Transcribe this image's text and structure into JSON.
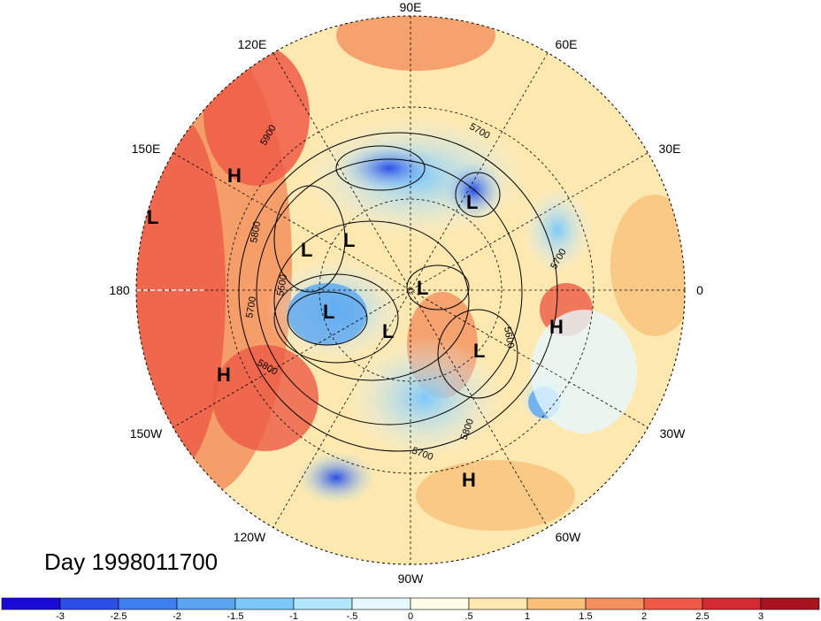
{
  "title": "Day 1998011700",
  "longitude_labels": {
    "top": "90E",
    "upper_left": "120E",
    "upper_right": "60E",
    "mid_upper_left": "150E",
    "mid_upper_right": "30E",
    "left": "180",
    "right": "0",
    "mid_lower_left": "150W",
    "mid_lower_right": "30W",
    "lower_left": "120W",
    "lower_right": "60W",
    "bottom": "90W"
  },
  "pressure_centers": [
    {
      "type": "H"
    },
    {
      "type": "L"
    },
    {
      "type": "L"
    },
    {
      "type": "L"
    },
    {
      "type": "L"
    },
    {
      "type": "L"
    },
    {
      "type": "L"
    },
    {
      "type": "H"
    },
    {
      "type": "L"
    },
    {
      "type": "L"
    },
    {
      "type": "H"
    },
    {
      "type": "H"
    }
  ],
  "contour_labels": [
    "5900",
    "5800",
    "5500",
    "5700",
    "5800",
    "5700",
    "5700",
    "5600",
    "5800",
    "5700"
  ],
  "colorbar": {
    "ticks": [
      "-3",
      "-2.5",
      "-2",
      "-1.5",
      "-1",
      "-.5",
      "0",
      ".5",
      "1",
      "1.5",
      "2",
      "2.5",
      "3"
    ],
    "colors": [
      "#1a0ad6",
      "#2a4ee6",
      "#3e7ff0",
      "#5aa6f2",
      "#7cc8f8",
      "#b2e8fb",
      "#e6f7fd",
      "#fffde8",
      "#fde8b0",
      "#f9c07a",
      "#f4905e",
      "#ee5a46",
      "#d22a30",
      "#a8141e"
    ]
  }
}
